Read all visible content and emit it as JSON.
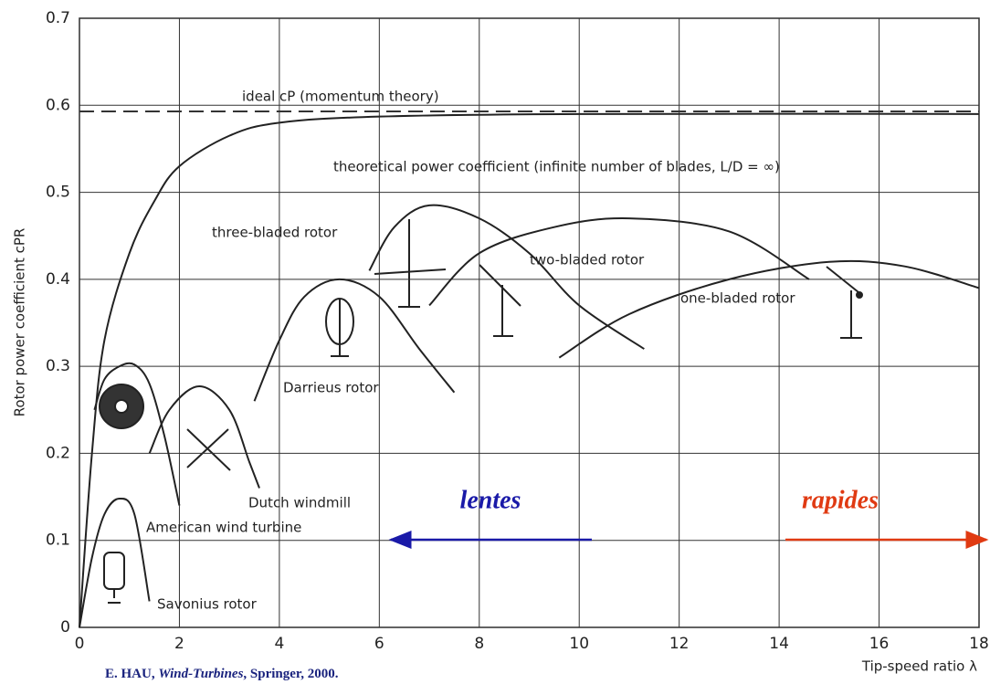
{
  "chart_data": {
    "type": "line",
    "ylabel": "Rotor power coefficient cPR",
    "xlabel": "Tip-speed ratio λ",
    "xlim": [
      0,
      18
    ],
    "ylim": [
      0,
      0.7
    ],
    "xticks": [
      0,
      2,
      4,
      6,
      8,
      10,
      12,
      14,
      16,
      18
    ],
    "yticks": [
      0,
      0.1,
      0.2,
      0.3,
      0.4,
      0.5,
      0.6,
      0.7
    ],
    "grid": true,
    "series": [
      {
        "name": "ideal cP (momentum theory)",
        "color": "#333333",
        "style": "dashed",
        "x": [
          0,
          18
        ],
        "values": [
          0.593,
          0.593
        ]
      },
      {
        "name": "theoretical power coefficient (infinite number of blades, L/D = ∞)",
        "color": "#222222",
        "style": "solid",
        "x": [
          0,
          0.25,
          0.5,
          1,
          1.5,
          2,
          3,
          4,
          6,
          10,
          18
        ],
        "values": [
          0,
          0.2,
          0.33,
          0.43,
          0.49,
          0.53,
          0.565,
          0.58,
          0.587,
          0.59,
          0.59
        ]
      },
      {
        "name": "Savonius rotor",
        "color": "#222222",
        "style": "solid",
        "x": [
          0,
          0.25,
          0.5,
          0.8,
          1.1,
          1.4
        ],
        "values": [
          0,
          0.08,
          0.13,
          0.148,
          0.13,
          0.03
        ]
      },
      {
        "name": "American wind turbine",
        "color": "#222222",
        "style": "solid",
        "x": [
          0.3,
          0.5,
          0.8,
          1.1,
          1.4,
          1.7,
          2.0
        ],
        "values": [
          0.25,
          0.285,
          0.3,
          0.302,
          0.28,
          0.22,
          0.14
        ]
      },
      {
        "name": "Dutch windmill",
        "color": "#222222",
        "style": "solid",
        "x": [
          1.4,
          1.8,
          2.4,
          3.0,
          3.4,
          3.6
        ],
        "values": [
          0.2,
          0.25,
          0.277,
          0.25,
          0.19,
          0.16
        ]
      },
      {
        "name": "Darrieus rotor",
        "color": "#222222",
        "style": "solid",
        "x": [
          3.5,
          4,
          4.5,
          5.2,
          6,
          6.8,
          7.5
        ],
        "values": [
          0.26,
          0.33,
          0.38,
          0.4,
          0.38,
          0.32,
          0.27
        ]
      },
      {
        "name": "three-bladed rotor",
        "color": "#222222",
        "style": "solid",
        "x": [
          5.8,
          6.3,
          7,
          8,
          9,
          10,
          11.3
        ],
        "values": [
          0.41,
          0.46,
          0.485,
          0.47,
          0.43,
          0.37,
          0.32
        ]
      },
      {
        "name": "two-bladed rotor",
        "color": "#222222",
        "style": "solid",
        "x": [
          7,
          8,
          9.5,
          11,
          13,
          14.6
        ],
        "values": [
          0.37,
          0.43,
          0.46,
          0.47,
          0.455,
          0.4
        ]
      },
      {
        "name": "one-bladed rotor",
        "color": "#222222",
        "style": "solid",
        "x": [
          9.6,
          11,
          13,
          15,
          16.5,
          18
        ],
        "values": [
          0.31,
          0.36,
          0.4,
          0.42,
          0.415,
          0.39
        ]
      }
    ],
    "annotations": [
      {
        "text": "lentes",
        "color": "#1a1aa8"
      },
      {
        "text": "rapides",
        "color": "#e03a12"
      }
    ],
    "source": {
      "author": "E. HAU,",
      "book": "Wind-Turbines",
      "rest": ", Springer, 2000."
    }
  }
}
